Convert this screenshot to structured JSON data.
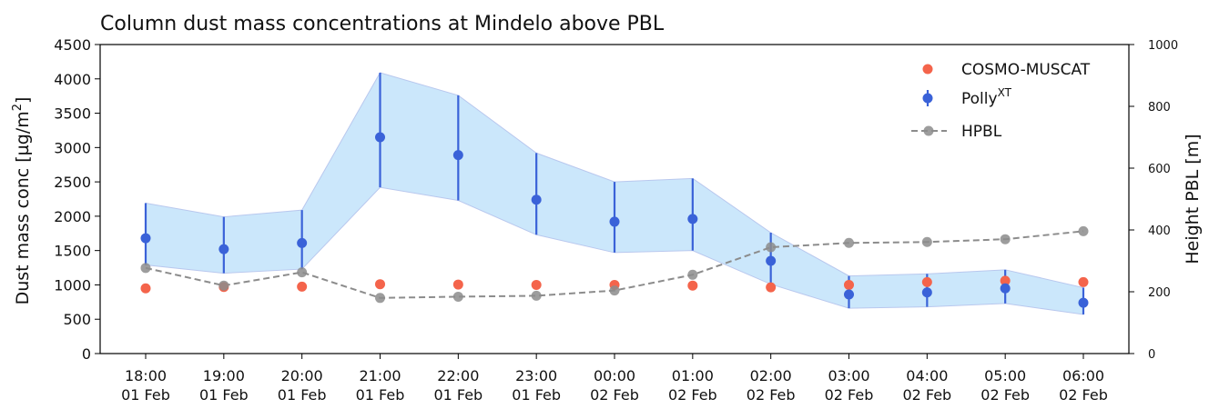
{
  "chart_data": {
    "type": "line",
    "title": "Column dust mass concentrations at Mindelo above PBL",
    "ylabel": "Dust mass conc [µg/m²]",
    "ylabel_parts": {
      "main": "Dust mass conc [µg/m",
      "sup": "2",
      "end": "]"
    },
    "y2label": "Height PBL [m]",
    "ylim": [
      0,
      4500
    ],
    "y2lim": [
      0,
      1000
    ],
    "yticks": [
      "0",
      "500",
      "1000",
      "1500",
      "2000",
      "2500",
      "3000",
      "3500",
      "4000",
      "4500"
    ],
    "y2ticks": [
      "0",
      "200",
      "400",
      "600",
      "800",
      "1000"
    ],
    "categories": [
      [
        "18:00",
        "01 Feb"
      ],
      [
        "19:00",
        "01 Feb"
      ],
      [
        "20:00",
        "01 Feb"
      ],
      [
        "21:00",
        "01 Feb"
      ],
      [
        "22:00",
        "01 Feb"
      ],
      [
        "23:00",
        "01 Feb"
      ],
      [
        "00:00",
        "02 Feb"
      ],
      [
        "01:00",
        "02 Feb"
      ],
      [
        "02:00",
        "02 Feb"
      ],
      [
        "03:00",
        "02 Feb"
      ],
      [
        "04:00",
        "02 Feb"
      ],
      [
        "05:00",
        "02 Feb"
      ],
      [
        "06:00",
        "02 Feb"
      ]
    ],
    "legend_position": "upper right",
    "series": [
      {
        "name": "COSMO-MUSCAT",
        "axis": "left",
        "style": "markers",
        "color": "#f4644b",
        "values": [
          950,
          970,
          975,
          1010,
          1005,
          1000,
          1000,
          990,
          965,
          1000,
          1040,
          1060,
          1040
        ]
      },
      {
        "name": "Polly",
        "name_sup": "XT",
        "axis": "left",
        "style": "markers-errorbars-band",
        "color": "#3a62d8",
        "band_color": "#cbe7fb",
        "values": [
          1680,
          1520,
          1610,
          3150,
          2890,
          2240,
          1920,
          1960,
          1350,
          860,
          890,
          950,
          740
        ],
        "lower": [
          1290,
          1170,
          1230,
          2420,
          2230,
          1730,
          1470,
          1500,
          1010,
          660,
          680,
          730,
          570
        ],
        "upper": [
          2190,
          1990,
          2090,
          4090,
          3760,
          2920,
          2500,
          2550,
          1760,
          1130,
          1160,
          1220,
          960
        ]
      },
      {
        "name": "HPBL",
        "axis": "right",
        "style": "dashed-line-markers",
        "color": "#8c8c8c",
        "values": [
          277,
          220,
          263,
          180,
          184,
          187,
          204,
          255,
          344,
          358,
          361,
          370,
          396
        ]
      }
    ]
  }
}
